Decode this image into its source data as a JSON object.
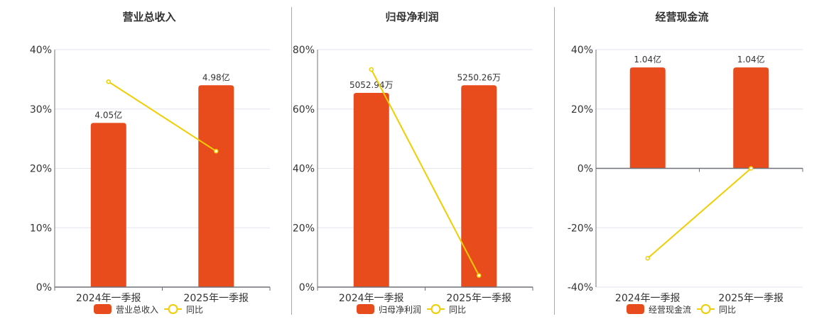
{
  "colors": {
    "bar": "#e84c1d",
    "line": "#f2cd00",
    "grid": "#e3e6ef",
    "axis": "#6e7079",
    "text": "#333333"
  },
  "chart_data": [
    {
      "type": "bar+line",
      "title": "营业总收入",
      "categories": [
        "2024年一季报",
        "2025年一季报"
      ],
      "bar_series": {
        "name": "营业总收入",
        "values": [
          4.05,
          4.98
        ],
        "labels": [
          "4.05亿",
          "4.98亿"
        ],
        "unit": "亿"
      },
      "line_series": {
        "name": "同比",
        "values": [
          34.6,
          22.9
        ],
        "unit": "%"
      },
      "ylim": [
        0,
        40
      ],
      "yticks": [
        "0%",
        "10%",
        "20%",
        "30%",
        "40%"
      ],
      "ytick_values": [
        0,
        10,
        20,
        30,
        40
      ],
      "grid": true,
      "legend": "bottom"
    },
    {
      "type": "bar+line",
      "title": "归母净利润",
      "categories": [
        "2024年一季报",
        "2025年一季报"
      ],
      "bar_series": {
        "name": "归母净利润",
        "values": [
          5052.94,
          5250.26
        ],
        "labels": [
          "5052.94万",
          "5250.26万"
        ],
        "unit": "万"
      },
      "line_series": {
        "name": "同比",
        "values": [
          73.3,
          3.9
        ],
        "unit": "%"
      },
      "ylim": [
        0,
        80
      ],
      "yticks": [
        "0%",
        "20%",
        "40%",
        "60%",
        "80%"
      ],
      "ytick_values": [
        0,
        20,
        40,
        60,
        80
      ],
      "grid": true,
      "legend": "bottom"
    },
    {
      "type": "bar+line",
      "title": "经营现金流",
      "categories": [
        "2024年一季报",
        "2025年一季报"
      ],
      "bar_series": {
        "name": "经营现金流",
        "values": [
          1.04,
          1.04
        ],
        "labels": [
          "1.04亿",
          "1.04亿"
        ],
        "unit": "亿"
      },
      "line_series": {
        "name": "同比",
        "values": [
          -30.3,
          0.0
        ],
        "unit": "%"
      },
      "ylim": [
        -40,
        40
      ],
      "yticks": [
        "-40%",
        "-20%",
        "0%",
        "20%",
        "40%"
      ],
      "ytick_values": [
        -40,
        -20,
        0,
        20,
        40
      ],
      "grid": true,
      "legend": "bottom"
    }
  ]
}
